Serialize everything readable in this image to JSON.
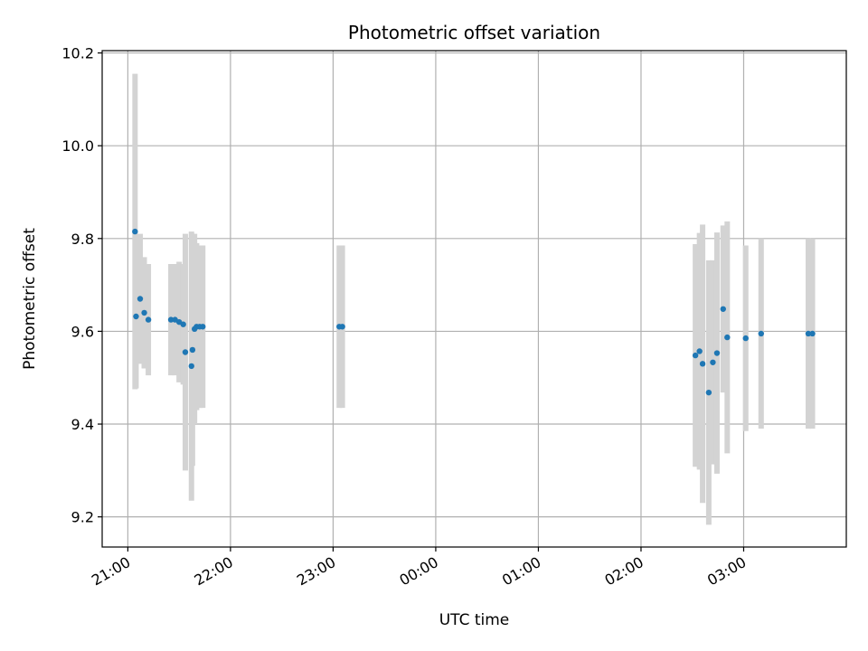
{
  "chart_data": {
    "type": "scatter",
    "title": "Photometric offset variation",
    "xlabel": "UTC time",
    "ylabel": "Photometric offset",
    "x_ticks": [
      "21:00",
      "22:00",
      "23:00",
      "00:00",
      "01:00",
      "02:00",
      "03:00"
    ],
    "x_tick_hours": [
      0,
      1,
      2,
      3,
      4,
      5,
      6
    ],
    "x_unit": "hours after 21:00 UTC",
    "xlim": [
      -0.25,
      7.0
    ],
    "y_ticks": [
      "9.2",
      "9.4",
      "9.6",
      "9.8",
      "10.0",
      "10.2"
    ],
    "y_tick_values": [
      9.2,
      9.4,
      9.6,
      9.8,
      10.0,
      10.2
    ],
    "ylim": [
      9.135,
      10.205
    ],
    "grid": true,
    "marker_color": "#1f77b4",
    "errorbar_color": "#d3d3d3",
    "series": [
      {
        "points": [
          {
            "x": 0.07,
            "y": 9.815,
            "err": 0.34
          },
          {
            "x": 0.08,
            "y": 9.632,
            "err": 0.155
          },
          {
            "x": 0.12,
            "y": 9.67,
            "err": 0.14
          },
          {
            "x": 0.16,
            "y": 9.64,
            "err": 0.12
          },
          {
            "x": 0.2,
            "y": 9.625,
            "err": 0.12
          },
          {
            "x": 0.42,
            "y": 9.625,
            "err": 0.12
          },
          {
            "x": 0.46,
            "y": 9.625,
            "err": 0.12
          },
          {
            "x": 0.5,
            "y": 9.62,
            "err": 0.13
          },
          {
            "x": 0.54,
            "y": 9.615,
            "err": 0.13
          },
          {
            "x": 0.56,
            "y": 9.555,
            "err": 0.255
          },
          {
            "x": 0.62,
            "y": 9.525,
            "err": 0.29
          },
          {
            "x": 0.63,
            "y": 9.56,
            "err": 0.25
          },
          {
            "x": 0.65,
            "y": 9.605,
            "err": 0.205
          },
          {
            "x": 0.67,
            "y": 9.61,
            "err": 0.18
          },
          {
            "x": 0.7,
            "y": 9.61,
            "err": 0.175
          },
          {
            "x": 0.73,
            "y": 9.61,
            "err": 0.175
          },
          {
            "x": 2.06,
            "y": 9.61,
            "err": 0.175
          },
          {
            "x": 2.09,
            "y": 9.61,
            "err": 0.175
          },
          {
            "x": 5.53,
            "y": 9.548,
            "err": 0.24
          },
          {
            "x": 5.57,
            "y": 9.557,
            "err": 0.255
          },
          {
            "x": 5.6,
            "y": 9.53,
            "err": 0.3
          },
          {
            "x": 5.66,
            "y": 9.468,
            "err": 0.285
          },
          {
            "x": 5.7,
            "y": 9.533,
            "err": 0.22
          },
          {
            "x": 5.74,
            "y": 9.553,
            "err": 0.26
          },
          {
            "x": 5.8,
            "y": 9.648,
            "err": 0.18
          },
          {
            "x": 5.84,
            "y": 9.587,
            "err": 0.25
          },
          {
            "x": 6.02,
            "y": 9.585,
            "err": 0.2
          },
          {
            "x": 6.17,
            "y": 9.595,
            "err": 0.205
          },
          {
            "x": 6.63,
            "y": 9.595,
            "err": 0.205
          },
          {
            "x": 6.67,
            "y": 9.595,
            "err": 0.205
          }
        ]
      }
    ]
  }
}
